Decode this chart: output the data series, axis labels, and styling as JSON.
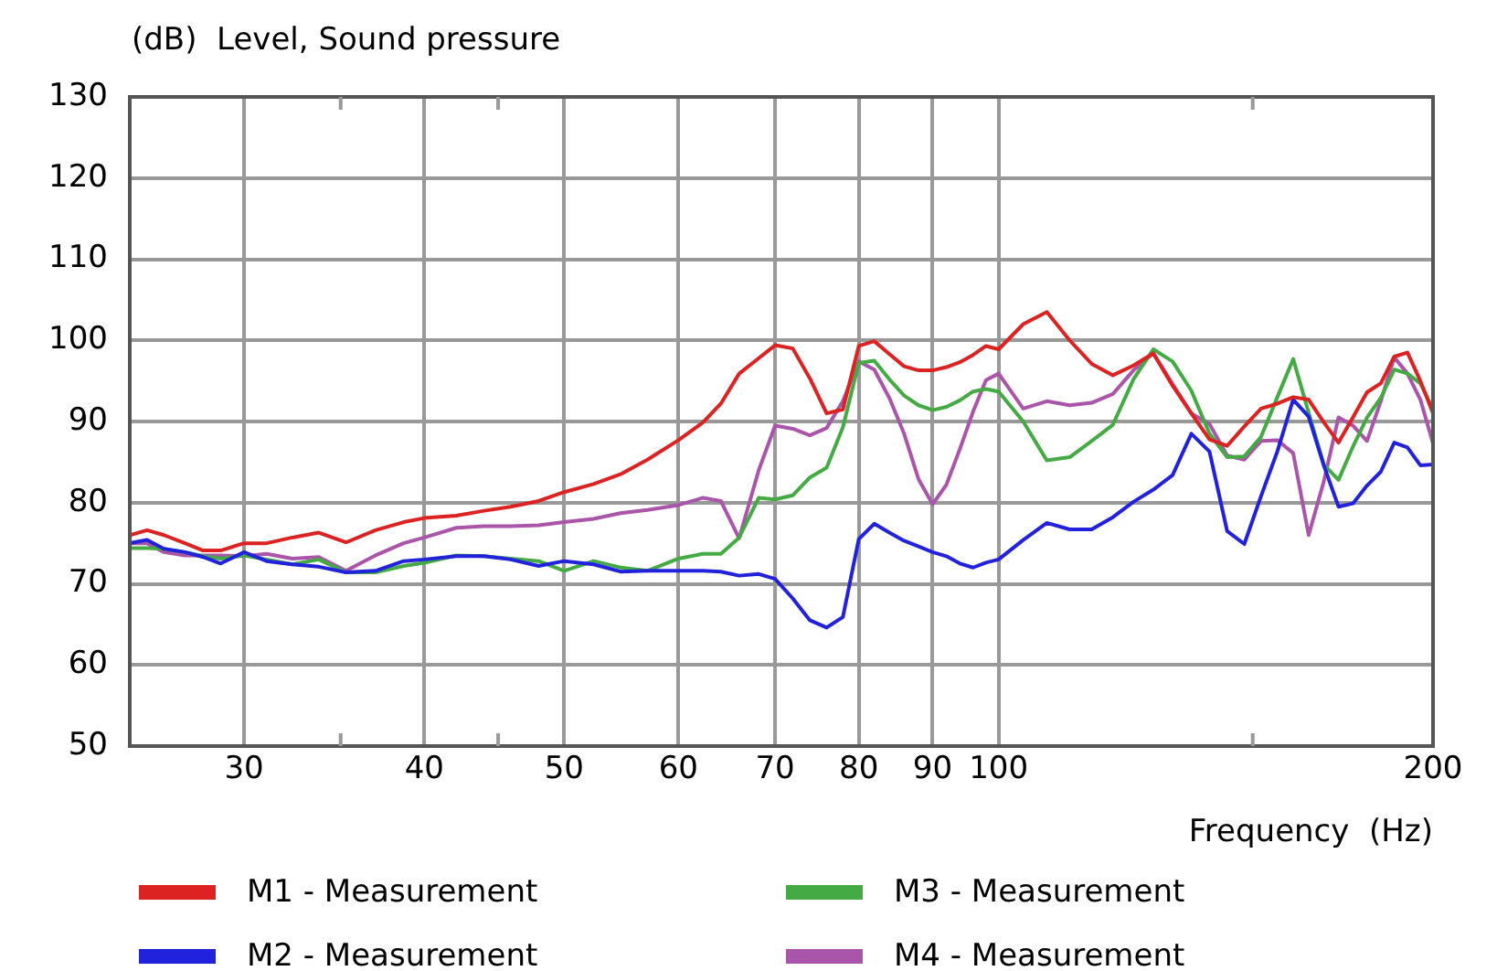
{
  "chart_data": {
    "type": "line",
    "ylabel": "(dB)  Level, Sound pressure",
    "xlabel": "Frequency  (Hz)",
    "x": [
      25,
      25.7,
      26.4,
      27.3,
      28.1,
      28.9,
      30,
      31.1,
      32.4,
      33.8,
      35.3,
      37,
      38.7,
      40,
      42.1,
      44,
      45.9,
      48,
      50,
      52.4,
      54.7,
      57.1,
      60,
      62.4,
      64.2,
      66.1,
      68.2,
      70,
      72,
      74,
      76,
      78,
      80,
      82,
      84,
      86,
      88,
      90,
      92,
      94,
      96,
      98,
      100,
      104,
      108,
      112,
      116,
      120,
      124,
      128,
      132,
      136,
      140,
      144,
      148,
      152,
      156,
      160,
      164,
      168,
      172,
      176,
      180,
      184,
      188,
      192,
      196,
      200
    ],
    "series": [
      {
        "name": "M1 - Measurement",
        "color": "#dd2222",
        "values": [
          76.0,
          76.6,
          76,
          75,
          74.1,
          74.1,
          75,
          75,
          75.7,
          76.3,
          75.1,
          76.6,
          77.6,
          78.1,
          78.4,
          79,
          79.5,
          80.2,
          81.3,
          82.3,
          83.5,
          85.3,
          87.7,
          89.9,
          92.2,
          95.9,
          97.8,
          99.4,
          99,
          95.3,
          91,
          91.5,
          99.3,
          99.9,
          98.3,
          96.8,
          96.3,
          96.3,
          96.7,
          97.3,
          98.2,
          99.3,
          98.9,
          102,
          103.5,
          100,
          97.1,
          95.7,
          96.9,
          98.4,
          94.4,
          91,
          87.8,
          87,
          89.4,
          91.6,
          92.2,
          93,
          92.7,
          89.9,
          87.4,
          90.5,
          93.6,
          94.7,
          98,
          98.5,
          95,
          91
        ]
      },
      {
        "name": "M2 - Measurement",
        "color": "#2222dd",
        "values": [
          75,
          75.4,
          74.3,
          73.9,
          73.3,
          72.5,
          73.9,
          72.8,
          72.4,
          72.1,
          71.4,
          71.6,
          72.8,
          73,
          73.4,
          73.4,
          73,
          72.2,
          72.8,
          72.4,
          71.5,
          71.6,
          71.6,
          71.6,
          71.5,
          71,
          71.2,
          70.6,
          68.2,
          65.5,
          64.6,
          65.9,
          75.5,
          77.4,
          76.3,
          75.3,
          74.6,
          73.9,
          73.4,
          72.5,
          72,
          72.6,
          73,
          75.4,
          77.5,
          76.7,
          76.7,
          78.2,
          80.1,
          81.6,
          83.4,
          88.5,
          86.3,
          76.5,
          74.9,
          80.8,
          86.3,
          92.7,
          90.6,
          84.6,
          79.5,
          79.9,
          82.1,
          83.8,
          87.4,
          86.8,
          84.6,
          84.7
        ]
      },
      {
        "name": "M3 - Measurement",
        "color": "#44aa44",
        "values": [
          74.4,
          74.4,
          74.3,
          73.9,
          73.4,
          73.1,
          73.5,
          73,
          72.4,
          73,
          71.4,
          71.4,
          72.2,
          72.6,
          73.5,
          73.4,
          73.1,
          72.8,
          71.6,
          72.8,
          72,
          71.6,
          73.1,
          73.7,
          73.7,
          75.7,
          80.6,
          80.4,
          80.9,
          83.1,
          84.3,
          89.3,
          97.2,
          97.5,
          95.2,
          93.2,
          92,
          91.4,
          91.8,
          92.6,
          93.7,
          94,
          93.7,
          90,
          85.2,
          85.6,
          87.6,
          89.6,
          95.2,
          98.9,
          97.4,
          93.8,
          88.5,
          85.6,
          85.7,
          88.1,
          93,
          97.7,
          91.1,
          84.7,
          82.8,
          86.9,
          90.5,
          92.9,
          96.4,
          95.9,
          94.7,
          91.5
        ]
      },
      {
        "name": "M4 - Measurement",
        "color": "#aa55aa",
        "values": [
          75,
          75,
          73.9,
          73.5,
          73.5,
          73.5,
          73.4,
          73.7,
          73.1,
          73.3,
          71.6,
          73.5,
          75,
          75.7,
          76.9,
          77.1,
          77.1,
          77.2,
          77.6,
          78,
          78.7,
          79.1,
          79.7,
          80.6,
          80.2,
          75.6,
          84,
          89.5,
          89.1,
          88.3,
          89.2,
          92.5,
          97.4,
          96.4,
          92.9,
          88.5,
          82.9,
          79.8,
          82.2,
          86.6,
          91.2,
          95.1,
          95.9,
          91.6,
          92.5,
          92,
          92.3,
          93.4,
          96.3,
          98.4,
          94.6,
          91,
          89.7,
          85.8,
          85.3,
          87.6,
          87.7,
          86.1,
          76,
          82.6,
          90.5,
          89.5,
          87.6,
          92.5,
          97.9,
          95.9,
          92.7,
          87.3
        ]
      }
    ],
    "log": "x",
    "xlim": [
      25,
      200
    ],
    "xticks": [
      30,
      {
        "value": 35,
        "label": null
      },
      40,
      {
        "value": 45,
        "label": null
      },
      50,
      60,
      70,
      80,
      90,
      100,
      {
        "value": 150,
        "label": null
      },
      200
    ],
    "ylim": [
      50,
      130
    ],
    "yticks": [
      50,
      60,
      70,
      80,
      90,
      100,
      110,
      120,
      130
    ],
    "grid": true,
    "legend": "bottom",
    "marker": "none",
    "line_style": "solid"
  }
}
